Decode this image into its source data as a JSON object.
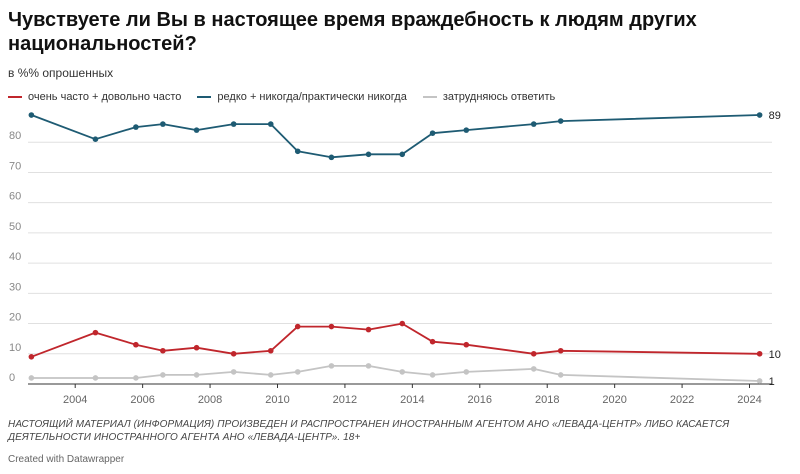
{
  "chart_data": {
    "type": "line",
    "title": "Чувствуете ли Вы в настоящее время враждебность к людям других национальностей?",
    "subtitle": "в %% опрошенных",
    "ylim": [
      0,
      90
    ],
    "yticks": [
      0,
      10,
      20,
      30,
      40,
      50,
      60,
      70,
      80
    ],
    "xlim": [
      2002.6,
      2024.4
    ],
    "xticks": [
      2004,
      2006,
      2008,
      2010,
      2012,
      2014,
      2016,
      2018,
      2020,
      2022,
      2024
    ],
    "grid": true,
    "legend_position": "top-left",
    "series": [
      {
        "name": "очень часто + довольно часто",
        "color": "#c0262c",
        "end_label": "10",
        "x": [
          2002.7,
          2004.6,
          2005.8,
          2006.6,
          2007.6,
          2008.7,
          2009.8,
          2010.6,
          2011.6,
          2012.7,
          2013.7,
          2014.6,
          2015.6,
          2017.6,
          2018.4,
          2024.3
        ],
        "y": [
          9,
          17,
          13,
          11,
          12,
          10,
          11,
          19,
          19,
          18,
          20,
          14,
          13,
          10,
          11,
          10
        ]
      },
      {
        "name": "редко + никогда/практически никогда",
        "color": "#1e5b73",
        "end_label": "89",
        "x": [
          2002.7,
          2004.6,
          2005.8,
          2006.6,
          2007.6,
          2008.7,
          2009.8,
          2010.6,
          2011.6,
          2012.7,
          2013.7,
          2014.6,
          2015.6,
          2017.6,
          2018.4,
          2024.3
        ],
        "y": [
          89,
          81,
          85,
          86,
          84,
          86,
          86,
          77,
          75,
          76,
          76,
          83,
          84,
          86,
          87,
          89
        ]
      },
      {
        "name": "затрудняюсь ответить",
        "color": "#c4c4c4",
        "end_label": "1",
        "x": [
          2002.7,
          2004.6,
          2005.8,
          2006.6,
          2007.6,
          2008.7,
          2009.8,
          2010.6,
          2011.6,
          2012.7,
          2013.7,
          2014.6,
          2015.6,
          2017.6,
          2018.4,
          2024.3
        ],
        "y": [
          2,
          2,
          2,
          3,
          3,
          4,
          3,
          4,
          6,
          6,
          4,
          3,
          4,
          5,
          3,
          1
        ]
      }
    ]
  },
  "footer": {
    "disclaimer": "НАСТОЯЩИЙ МАТЕРИАЛ (ИНФОРМАЦИЯ) ПРОИЗВЕДЕН И РАСПРОСТРАНЕН ИНОСТРАННЫМ АГЕНТОМ АНО «ЛЕВАДА-ЦЕНТР» ЛИБО КАСАЕТСЯ ДЕЯТЕЛЬНОСТИ ИНОСТРАННОГО АГЕНТА АНО «ЛЕВАДА-ЦЕНТР». 18+",
    "credit": "Created with Datawrapper"
  }
}
